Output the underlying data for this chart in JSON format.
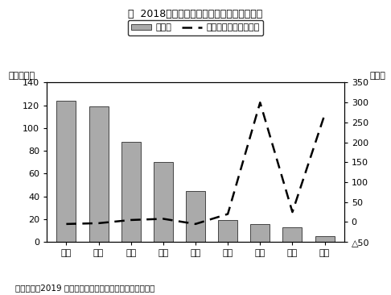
{
  "title": "図  2018年の水産品輸入状況（主要地域別）",
  "categories": [
    "遼寧",
    "山東",
    "広東",
    "福建",
    "上海",
    "浙江",
    "天津",
    "北京",
    "河北"
  ],
  "bar_values": [
    124,
    119,
    88,
    70,
    45,
    19,
    16,
    13,
    5
  ],
  "line_values": [
    -5,
    -3,
    5,
    8,
    -5,
    20,
    300,
    25,
    270
  ],
  "bar_color": "#aaaaaa",
  "line_color": "#000000",
  "ylabel_left": "（万トン）",
  "ylabel_right": "（％）",
  "ylim_left": [
    0,
    140
  ],
  "ylim_right": [
    -50,
    350
  ],
  "yticks_left": [
    0,
    20,
    40,
    60,
    80,
    100,
    120,
    140
  ],
  "yticks_right": [
    -50,
    0,
    50,
    100,
    150,
    200,
    250,
    300,
    350
  ],
  "ytick_labels_right": [
    "≐50",
    "0",
    "50",
    "100",
    "150",
    "200",
    "250",
    "300",
    "350"
  ],
  "legend_bar": "輸入量",
  "legend_line": "前年比伸び率（右軸）",
  "source_text": "（出所）「2019 中国漁業統計年鑑」を基にジェトロ作成",
  "bg_color": "#ffffff",
  "plot_bg_color": "#ffffff"
}
